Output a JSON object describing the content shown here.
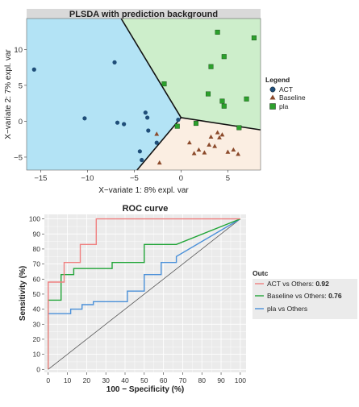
{
  "chart_data": [
    {
      "type": "scatter",
      "title": "PLSDA with prediction background",
      "xlabel": "X−variate 1: 8% expl. var",
      "ylabel": "X−variate 2: 7% expl. var",
      "xlim": [
        -16.5,
        8.5
      ],
      "ylim": [
        -6.8,
        14.3
      ],
      "xticks": [
        -15,
        -10,
        -5,
        0,
        5
      ],
      "yticks": [
        -5,
        0,
        5,
        10
      ],
      "xtick_labels": [
        "−15",
        "−10",
        "−5",
        "0",
        "5"
      ],
      "ytick_labels": [
        "−5",
        "0",
        "5",
        "10"
      ],
      "legend": {
        "title": "Legend",
        "position": "right",
        "entries": [
          {
            "label": "ACT",
            "marker": "circle",
            "color": "#1f4e79"
          },
          {
            "label": "Baseline",
            "marker": "triangle",
            "color": "#8b4a2b"
          },
          {
            "label": "pla",
            "marker": "square",
            "color": "#2ca02c"
          }
        ]
      },
      "regions": [
        {
          "class": "ACT",
          "color": "#b3e3f5",
          "polygon": [
            [
              -16.5,
              14.3
            ],
            [
              -6.4,
              14.3
            ],
            [
              0.0,
              0.5
            ],
            [
              -4.7,
              -6.8
            ],
            [
              -16.5,
              -6.8
            ]
          ]
        },
        {
          "class": "pla",
          "color": "#cdeecb",
          "polygon": [
            [
              -6.4,
              14.3
            ],
            [
              8.5,
              14.3
            ],
            [
              8.5,
              -1.2
            ],
            [
              0.0,
              0.5
            ]
          ]
        },
        {
          "class": "Baseline",
          "color": "#fbeee2",
          "polygon": [
            [
              0.0,
              0.5
            ],
            [
              8.5,
              -1.2
            ],
            [
              8.5,
              -6.8
            ],
            [
              -4.7,
              -6.8
            ]
          ]
        }
      ],
      "series": [
        {
          "name": "ACT",
          "marker": "circle",
          "color": "#1f4e79",
          "x": [
            -15.7,
            -10.3,
            -7.1,
            -6.8,
            -6.1,
            -3.8,
            -3.6,
            -3.5,
            -2.6,
            -4.4,
            -4.2,
            -0.3
          ],
          "y": [
            7.2,
            0.4,
            8.2,
            -0.2,
            -0.4,
            1.2,
            0.5,
            -1.3,
            -3.0,
            -4.2,
            -5.4,
            0.2
          ]
        },
        {
          "name": "Baseline",
          "marker": "triangle",
          "color": "#8b4a2b",
          "x": [
            -2.6,
            0.9,
            1.4,
            1.9,
            2.5,
            3.0,
            3.2,
            3.6,
            3.9,
            4.1,
            4.4,
            5.0,
            5.6,
            6.1,
            -2.3
          ],
          "y": [
            -1.8,
            -3.0,
            -4.5,
            -4.0,
            -4.4,
            -3.3,
            -2.2,
            -3.5,
            -1.6,
            -2.3,
            -1.9,
            -4.3,
            -4.0,
            -4.6,
            -5.8
          ]
        },
        {
          "name": "pla",
          "marker": "square",
          "color": "#2ca02c",
          "x": [
            3.9,
            7.8,
            4.6,
            3.2,
            2.9,
            -1.8,
            4.4,
            4.6,
            7.0,
            6.2,
            1.6,
            -0.4
          ],
          "y": [
            12.4,
            11.6,
            9.0,
            7.6,
            3.8,
            5.2,
            2.8,
            2.1,
            3.1,
            -0.9,
            -0.3,
            -0.7
          ]
        }
      ]
    },
    {
      "type": "line",
      "title": "ROC curve",
      "xlabel": "100 − Specificity (%)",
      "ylabel": "Sensitivity (%)",
      "xlim": [
        -2,
        103
      ],
      "ylim": [
        -2,
        103
      ],
      "xticks": [
        0,
        10,
        20,
        30,
        40,
        50,
        60,
        70,
        80,
        90,
        100
      ],
      "yticks": [
        0,
        10,
        20,
        30,
        40,
        50,
        60,
        70,
        80,
        90,
        100
      ],
      "grid": true,
      "legend": {
        "title": "Outc",
        "position": "right"
      },
      "diagonal": {
        "x": [
          0,
          100
        ],
        "y": [
          0,
          100
        ],
        "color": "#555555"
      },
      "series": [
        {
          "name": "ACT vs Others",
          "auc_label": "0.92",
          "color": "#f08080",
          "x": [
            0,
            0,
            8.3,
            8.3,
            16.7,
            16.7,
            25,
            25,
            100
          ],
          "y": [
            0,
            58,
            58,
            71,
            71,
            83,
            83,
            100,
            100
          ]
        },
        {
          "name": "Baseline vs Others",
          "auc_label": "0.76",
          "color": "#21a538",
          "x": [
            0,
            0,
            6.7,
            6.7,
            13.3,
            13.3,
            20,
            20,
            33.3,
            33.3,
            50,
            50,
            66.7,
            66.7,
            100
          ],
          "y": [
            0,
            46,
            46,
            63,
            63,
            67,
            67,
            67,
            67,
            71,
            71,
            83,
            83,
            83,
            100
          ]
        },
        {
          "name": "pla vs Others",
          "auc_label": "",
          "color": "#4a90d9",
          "x": [
            0,
            0,
            11.7,
            11.7,
            17.6,
            17.6,
            23.5,
            23.5,
            41.2,
            41.2,
            50,
            50,
            58.8,
            58.8,
            66.7,
            66.7,
            100
          ],
          "y": [
            0,
            37,
            37,
            40,
            40,
            43,
            43,
            45,
            45,
            52,
            52,
            63,
            63,
            71,
            71,
            75,
            100
          ]
        }
      ]
    }
  ]
}
